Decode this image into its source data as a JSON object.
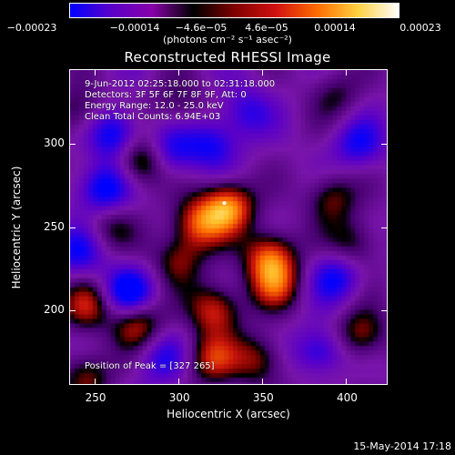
{
  "colorbar": {
    "ticks": [
      "−0.00023",
      "−0.00014",
      "−4.6e−05",
      "4.6e−05",
      "0.00014",
      "0.00023"
    ],
    "units": "(photons cm⁻² s⁻¹ asec⁻²)",
    "colors": [
      "#0000ff",
      "#5a00c8",
      "#8800aa",
      "#000000",
      "#7f0000",
      "#d01010",
      "#ff6a00",
      "#ffd040",
      "#ffffff"
    ]
  },
  "chart_data": {
    "type": "heatmap",
    "title": "Reconstructed RHESSI Image",
    "xlabel": "Heliocentric X (arcsec)",
    "ylabel": "Heliocentric Y (arcsec)",
    "xlim": [
      235,
      425
    ],
    "ylim": [
      155,
      345
    ],
    "xticks": [
      250,
      300,
      350,
      400
    ],
    "yticks": [
      200,
      250,
      300
    ],
    "peak_position": [
      327,
      265
    ],
    "annotations": [
      "9-Jun-2012 02:25:18.000 to 02:31:18.000",
      "Detectors: 3F 5F 6F 7F 8F 9F, Att: 0",
      "Energy Range: 12.0 - 25.0 keV",
      "Clean    Total Counts: 6.94E+03"
    ],
    "peak_label": "Position of Peak = [327 265]",
    "blobs": [
      {
        "x": 330,
        "y": 262,
        "v": 0.00023
      },
      {
        "x": 312,
        "y": 252,
        "v": 0.00018
      },
      {
        "x": 355,
        "y": 232,
        "v": 0.0002
      },
      {
        "x": 358,
        "y": 215,
        "v": 0.00015
      },
      {
        "x": 322,
        "y": 200,
        "v": 0.00017
      },
      {
        "x": 300,
        "y": 230,
        "v": 0.00012
      },
      {
        "x": 278,
        "y": 290,
        "v": 0.00017
      },
      {
        "x": 320,
        "y": 170,
        "v": 0.00015
      },
      {
        "x": 348,
        "y": 170,
        "v": 0.00013
      },
      {
        "x": 275,
        "y": 192,
        "v": 0.00016
      },
      {
        "x": 245,
        "y": 202,
        "v": 0.00014
      },
      {
        "x": 258,
        "y": 250,
        "v": 9e-05
      },
      {
        "x": 392,
        "y": 268,
        "v": 0.00012
      },
      {
        "x": 405,
        "y": 240,
        "v": 0.00011
      },
      {
        "x": 410,
        "y": 185,
        "v": 0.00014
      },
      {
        "x": 245,
        "y": 160,
        "v": 0.00012
      },
      {
        "x": 300,
        "y": 325,
        "v": 8e-05
      },
      {
        "x": 240,
        "y": 320,
        "v": 0.0001
      },
      {
        "x": 395,
        "y": 330,
        "v": 8e-05
      },
      {
        "x": 385,
        "y": 165,
        "v": 9e-05
      },
      {
        "x": 270,
        "y": 210,
        "v": -0.00018
      },
      {
        "x": 262,
        "y": 306,
        "v": -0.00016
      },
      {
        "x": 295,
        "y": 295,
        "v": -0.00013
      },
      {
        "x": 255,
        "y": 273,
        "v": -0.00017
      },
      {
        "x": 385,
        "y": 172,
        "v": -0.0002
      },
      {
        "x": 320,
        "y": 300,
        "v": -0.00012
      },
      {
        "x": 340,
        "y": 320,
        "v": -0.0001
      },
      {
        "x": 408,
        "y": 300,
        "v": -0.00012
      },
      {
        "x": 395,
        "y": 220,
        "v": -0.00013
      },
      {
        "x": 240,
        "y": 235,
        "v": -0.00012
      },
      {
        "x": 290,
        "y": 170,
        "v": -0.0001
      }
    ]
  },
  "footer": "15-May-2014 17:18"
}
